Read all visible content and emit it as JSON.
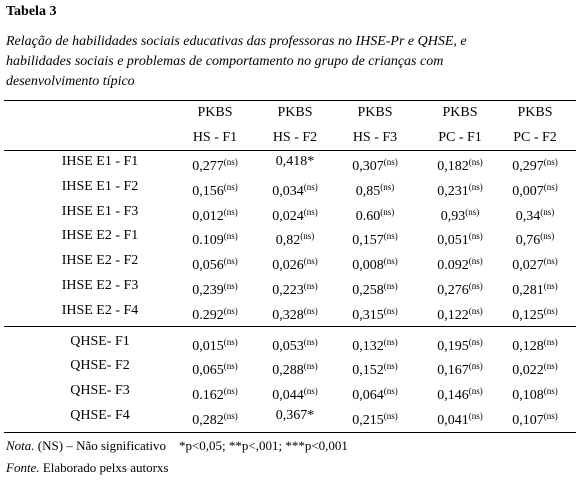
{
  "title": "Tabela 3",
  "caption": [
    "Relação de habilidades sociais educativas das professoras no IHSE-Pr e QHSE, e",
    "habilidades sociais e problemas de comportamento no grupo de crianças com",
    "desenvolvimento típico"
  ],
  "header": {
    "columns": [
      {
        "line1": "PKBS",
        "line2": "HS - F1"
      },
      {
        "line1": "PKBS",
        "line2": "HS - F2"
      },
      {
        "line1": "PKBS",
        "line2": "HS - F3"
      },
      {
        "line1": "PKBS",
        "line2": "PC - F1"
      },
      {
        "line1": "PKBS",
        "line2": "PC - F2"
      }
    ]
  },
  "table": {
    "groups": [
      {
        "rows": [
          {
            "label": "IHSE E1 - F1",
            "cells": [
              {
                "value": "0,277",
                "sig": "(ns)"
              },
              {
                "value": "0,418*"
              },
              {
                "value": "0,307",
                "sig": "(ns)"
              },
              {
                "value": "0,182",
                "sig": "(ns)"
              },
              {
                "value": "0,297",
                "sig": "(ns)"
              }
            ]
          },
          {
            "label": "IHSE E1 - F2",
            "cells": [
              {
                "value": "0,156",
                "sig": "(ns)"
              },
              {
                "value": "0,034",
                "sig": "(ns)"
              },
              {
                "value": "0,85",
                "sig": "(ns)"
              },
              {
                "value": "0,231",
                "sig": "(ns)"
              },
              {
                "value": "0,007",
                "sig": "(ns)"
              }
            ]
          },
          {
            "label": "IHSE E1 - F3",
            "cells": [
              {
                "value": "0,012",
                "sig": "(ns)"
              },
              {
                "value": "0,024",
                "sig": "(ns)"
              },
              {
                "value": "0.60",
                "sig": "(ns)"
              },
              {
                "value": "0,93",
                "sig": "(ns)"
              },
              {
                "value": "0,34",
                "sig": "(ns)"
              }
            ]
          },
          {
            "label": "IHSE E2 - F1",
            "cells": [
              {
                "value": "0.109",
                "sig": "(ns)"
              },
              {
                "value": "0,82",
                "sig": "(ns)"
              },
              {
                "value": "0,157",
                "sig": "(ns)"
              },
              {
                "value": "0,051",
                "sig": "(ns)"
              },
              {
                "value": "0,76",
                "sig": "(ns)"
              }
            ]
          },
          {
            "label": "IHSE E2 - F2",
            "cells": [
              {
                "value": "0,056",
                "sig": "(ns)"
              },
              {
                "value": "0,026",
                "sig": "(ns)"
              },
              {
                "value": "0,008",
                "sig": "(ns)"
              },
              {
                "value": "0.092",
                "sig": "(ns)"
              },
              {
                "value": "0,027",
                "sig": "(ns)"
              }
            ]
          },
          {
            "label": "IHSE E2 - F3",
            "cells": [
              {
                "value": "0,239",
                "sig": "(ns)"
              },
              {
                "value": "0,223",
                "sig": "(ns)"
              },
              {
                "value": "0,258",
                "sig": "(ns)"
              },
              {
                "value": "0,276",
                "sig": "(ns)"
              },
              {
                "value": "0,281",
                "sig": "(ns)"
              }
            ]
          },
          {
            "label": "IHSE E2 - F4",
            "cells": [
              {
                "value": "0.292",
                "sig": "(ns)"
              },
              {
                "value": "0,328",
                "sig": "(ns)"
              },
              {
                "value": "0,315",
                "sig": "(ns)"
              },
              {
                "value": "0,122",
                "sig": "(ns)"
              },
              {
                "value": "0,125",
                "sig": "(ns)"
              }
            ]
          }
        ]
      },
      {
        "rows": [
          {
            "label": "QHSE- F1",
            "cells": [
              {
                "value": "0,015",
                "sig": "(ns)"
              },
              {
                "value": "0,053",
                "sig": "(ns)"
              },
              {
                "value": "0,132",
                "sig": "(ns)"
              },
              {
                "value": "0,195",
                "sig": "(ns)"
              },
              {
                "value": "0,128",
                "sig": "(ns)"
              }
            ]
          },
          {
            "label": "QHSE- F2",
            "cells": [
              {
                "value": "0,065",
                "sig": "(ns)"
              },
              {
                "value": "0,288",
                "sig": "(ns)"
              },
              {
                "value": "0,152",
                "sig": "(ns)"
              },
              {
                "value": "0,167",
                "sig": "(ns)"
              },
              {
                "value": "0,022",
                "sig": "(ns)"
              }
            ]
          },
          {
            "label": "QHSE- F3",
            "cells": [
              {
                "value": "0.162",
                "sig": "(ns)"
              },
              {
                "value": "0,044",
                "sig": "(ns)"
              },
              {
                "value": "0,064",
                "sig": "(ns)"
              },
              {
                "value": "0,146",
                "sig": "(ns)"
              },
              {
                "value": "0,108",
                "sig": "(ns)"
              }
            ]
          },
          {
            "label": "QHSE- F4",
            "cells": [
              {
                "value": "0,282",
                "sig": "(ns)"
              },
              {
                "value": "0,367*"
              },
              {
                "value": "0,215",
                "sig": "(ns)"
              },
              {
                "value": "0,041",
                "sig": "(ns)"
              },
              {
                "value": "0,107",
                "sig": "(ns)"
              }
            ]
          }
        ]
      }
    ]
  },
  "note": {
    "label": "Nota.",
    "text": "(NS) – Não significativo    *p<0,05; **p<,001; ***p<0,001"
  },
  "source": {
    "label": "Fonte.",
    "text": "Elaborado pelxs autorxs"
  }
}
